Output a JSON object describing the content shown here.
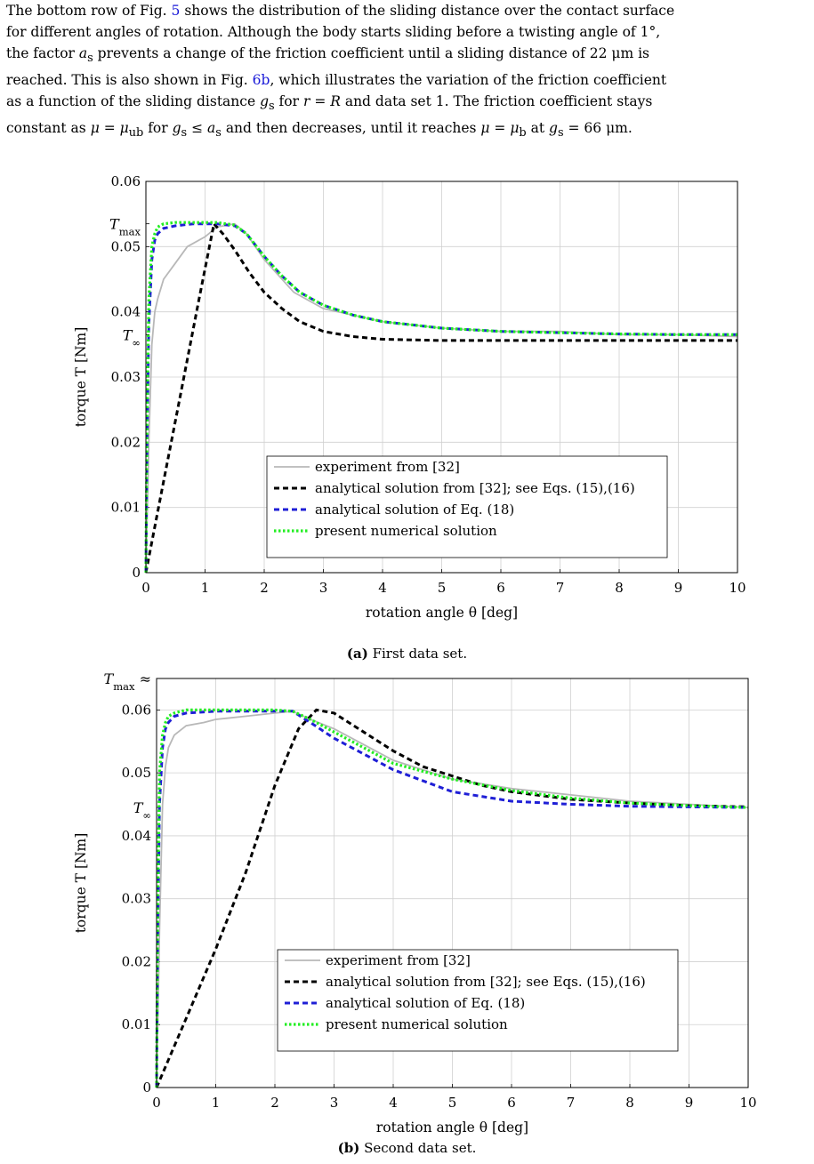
{
  "paragraph": {
    "lines": [
      "The bottom row of Fig. 5 shows the distribution of the sliding distance over the contact surface",
      "for different angles of rotation. Although the body starts sliding before a twisting angle of 1°,",
      "the factor a_s prevents a change of the friction coefficient until a sliding distance of 22 μm is",
      "reached. This is also shown in Fig. 6b, which illustrates the variation of the friction coefficient",
      "as a function of the sliding distance g_s for r = R and data set 1. The friction coefficient stays",
      "constant as μ = μ_ub for g_s ≤ a_s and then decreases, until it reaches μ = μ_b at g_s = 66 μm."
    ]
  },
  "legend_entries": [
    "experiment from [32]",
    "analytical solution from [32]; see Eqs. (15),(16)",
    "analytical solution of Eq. (18)",
    "present numerical solution"
  ],
  "colors": {
    "experiment": "#b8b8b8",
    "analytical_ref": "#000000",
    "analytical_eq18": "#1f1fd6",
    "numerical": "#22ee22",
    "grid": "#d0d0d0"
  },
  "captions": {
    "a_label": "(a)",
    "a_text": "First data set.",
    "b_label": "(b)",
    "b_text": "Second data set."
  },
  "chart_data": [
    {
      "type": "line",
      "xlabel": "rotation angle θ [deg]",
      "ylabel": "torque T [Nm]",
      "xlim": [
        0,
        10
      ],
      "ylim": [
        0,
        0.06
      ],
      "xticks": [
        0,
        1,
        2,
        3,
        4,
        5,
        6,
        7,
        8,
        9,
        10
      ],
      "yticks": [
        0,
        0.01,
        0.02,
        0.03,
        0.04,
        0.05,
        0.06
      ],
      "ytick_labels": [
        "0",
        "0.01",
        "0.02",
        "0.03",
        "0.04",
        "0.05",
        "0.06"
      ],
      "special_ticks": [
        {
          "label": "T_max",
          "y": 0.0535
        },
        {
          "label": "T_∞",
          "y": 0.0365
        }
      ],
      "grid": true,
      "legend_position": "bottom-right",
      "series": [
        {
          "name": "experiment from [32]",
          "style": "solid",
          "x": [
            0,
            0.05,
            0.1,
            0.15,
            0.2,
            0.3,
            0.5,
            0.7,
            1.0,
            1.2,
            1.5,
            1.7,
            2.0,
            2.5,
            3.0,
            4.0,
            5.0,
            6.0,
            7.0,
            8.0,
            9.0,
            10.0
          ],
          "y": [
            0,
            0.02,
            0.035,
            0.04,
            0.042,
            0.045,
            0.0475,
            0.05,
            0.0515,
            0.053,
            0.0535,
            0.052,
            0.048,
            0.043,
            0.0405,
            0.0385,
            0.0375,
            0.037,
            0.037,
            0.0365,
            0.0365,
            0.0362
          ]
        },
        {
          "name": "analytical solution from [32]; see Eqs. (15),(16)",
          "style": "dashed",
          "x": [
            0,
            0.3,
            0.6,
            0.9,
            1.15,
            1.3,
            1.5,
            1.75,
            2.0,
            2.3,
            2.6,
            3.0,
            3.5,
            4.0,
            5.0,
            6.0,
            7.0,
            8.0,
            9.0,
            10.0
          ],
          "y": [
            0,
            0.014,
            0.028,
            0.042,
            0.0535,
            0.052,
            0.0495,
            0.046,
            0.043,
            0.0405,
            0.0385,
            0.037,
            0.0362,
            0.0358,
            0.0356,
            0.0356,
            0.0356,
            0.0356,
            0.0356,
            0.0356
          ]
        },
        {
          "name": "analytical solution of Eq. (18)",
          "style": "dashed",
          "x": [
            0,
            0.02,
            0.05,
            0.1,
            0.15,
            0.2,
            0.3,
            0.5,
            0.8,
            1.0,
            1.2,
            1.5,
            1.7,
            2.0,
            2.3,
            2.6,
            3.0,
            3.5,
            4.0,
            5.0,
            6.0,
            7.0,
            8.0,
            9.0,
            10.0
          ],
          "y": [
            0,
            0.02,
            0.038,
            0.048,
            0.051,
            0.052,
            0.0528,
            0.0532,
            0.0535,
            0.0535,
            0.0535,
            0.0532,
            0.052,
            0.0485,
            0.0455,
            0.043,
            0.041,
            0.0395,
            0.0385,
            0.0375,
            0.037,
            0.0368,
            0.0366,
            0.0365,
            0.0365
          ]
        },
        {
          "name": "present numerical solution",
          "style": "dotted",
          "x": [
            0,
            0.02,
            0.05,
            0.1,
            0.15,
            0.2,
            0.3,
            0.5,
            0.8,
            1.0,
            1.2,
            1.5,
            1.7,
            2.0,
            2.3,
            2.6,
            3.0,
            3.5,
            4.0,
            5.0,
            6.0,
            7.0,
            8.0,
            9.0,
            10.0
          ],
          "y": [
            0,
            0.024,
            0.042,
            0.05,
            0.052,
            0.053,
            0.0535,
            0.0537,
            0.0537,
            0.0537,
            0.0537,
            0.0533,
            0.052,
            0.0485,
            0.0455,
            0.043,
            0.041,
            0.0395,
            0.0385,
            0.0375,
            0.037,
            0.0368,
            0.0366,
            0.0365,
            0.0365
          ]
        }
      ]
    },
    {
      "type": "line",
      "xlabel": "rotation angle θ [deg]",
      "ylabel": "torque T [Nm]",
      "xlim": [
        0,
        10
      ],
      "ylim": [
        0,
        0.065
      ],
      "xticks": [
        0,
        1,
        2,
        3,
        4,
        5,
        6,
        7,
        8,
        9,
        10
      ],
      "yticks": [
        0,
        0.01,
        0.02,
        0.03,
        0.04,
        0.05,
        0.06
      ],
      "ytick_labels": [
        "0",
        "0.01",
        "0.02",
        "0.03",
        "0.04",
        "0.05",
        "0.06"
      ],
      "special_ticks": [
        {
          "label": "T_max ≈",
          "y": 0.065
        },
        {
          "label": "T_∞",
          "y": 0.0445
        }
      ],
      "grid": true,
      "legend_position": "bottom-right",
      "series": [
        {
          "name": "experiment from [32]",
          "style": "solid",
          "x": [
            0,
            0.05,
            0.1,
            0.15,
            0.2,
            0.3,
            0.5,
            0.8,
            1.0,
            1.5,
            2.0,
            2.3,
            2.6,
            3.0,
            3.5,
            4.0,
            5.0,
            6.0,
            7.0,
            8.0,
            9.0,
            10.0
          ],
          "y": [
            0,
            0.025,
            0.045,
            0.051,
            0.054,
            0.056,
            0.0575,
            0.058,
            0.0585,
            0.059,
            0.0595,
            0.0598,
            0.0585,
            0.057,
            0.0545,
            0.052,
            0.049,
            0.0475,
            0.0465,
            0.0455,
            0.045,
            0.0445
          ]
        },
        {
          "name": "analytical solution from [32]; see Eqs. (15),(16)",
          "style": "dashed",
          "x": [
            0,
            0.5,
            1.0,
            1.5,
            2.0,
            2.4,
            2.7,
            3.0,
            3.5,
            4.0,
            4.5,
            5.0,
            5.5,
            6.0,
            7.0,
            8.0,
            9.0,
            10.0
          ],
          "y": [
            0,
            0.011,
            0.022,
            0.034,
            0.048,
            0.057,
            0.06,
            0.0595,
            0.0565,
            0.0535,
            0.051,
            0.0495,
            0.048,
            0.047,
            0.0458,
            0.0452,
            0.0448,
            0.0446
          ]
        },
        {
          "name": "analytical solution of Eq. (18)",
          "style": "dashed",
          "x": [
            0,
            0.02,
            0.05,
            0.1,
            0.15,
            0.2,
            0.3,
            0.5,
            1.0,
            1.5,
            2.0,
            2.3,
            2.6,
            3.0,
            3.5,
            4.0,
            5.0,
            6.0,
            7.0,
            8.0,
            9.0,
            10.0
          ],
          "y": [
            0,
            0.025,
            0.045,
            0.054,
            0.057,
            0.058,
            0.059,
            0.0595,
            0.0598,
            0.0598,
            0.0598,
            0.0598,
            0.058,
            0.0555,
            0.053,
            0.0505,
            0.047,
            0.0455,
            0.045,
            0.0447,
            0.0446,
            0.0445
          ]
        },
        {
          "name": "present numerical solution",
          "style": "dotted",
          "x": [
            0,
            0.02,
            0.05,
            0.1,
            0.15,
            0.2,
            0.3,
            0.5,
            1.0,
            1.5,
            2.0,
            2.3,
            2.6,
            3.0,
            3.5,
            4.0,
            5.0,
            6.0,
            7.0,
            8.0,
            9.0,
            10.0
          ],
          "y": [
            0,
            0.03,
            0.05,
            0.056,
            0.058,
            0.059,
            0.0595,
            0.06,
            0.06,
            0.06,
            0.06,
            0.0598,
            0.0585,
            0.0565,
            0.054,
            0.0515,
            0.049,
            0.0472,
            0.046,
            0.0452,
            0.0448,
            0.0445
          ]
        }
      ]
    }
  ]
}
